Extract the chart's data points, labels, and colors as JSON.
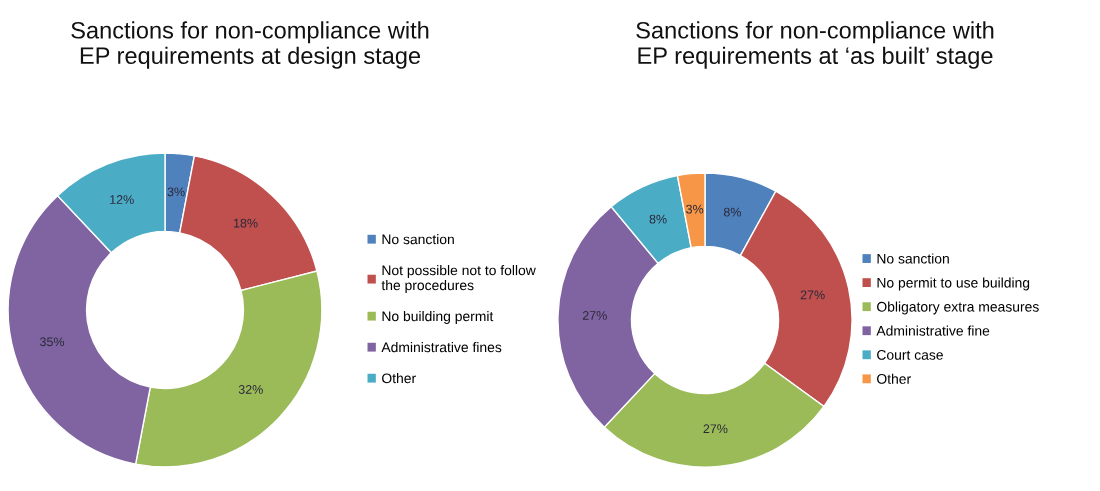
{
  "chart_data": [
    {
      "type": "donut",
      "title": "Sanctions for non-compliance with\nEP requirements at design stage",
      "categories": [
        "No sanction",
        "Not possible not to follow\nthe procedures",
        "No building permit",
        "Administrative fines",
        "Other"
      ],
      "values": [
        3,
        18,
        32,
        35,
        12
      ],
      "value_labels": [
        "3%",
        "18%",
        "32%",
        "35%",
        "12%"
      ],
      "colors": [
        "#4f81bd",
        "#c0504d",
        "#9bbb59",
        "#8064a2",
        "#4bacc6"
      ],
      "legend": "right"
    },
    {
      "type": "donut",
      "title": "Sanctions for non-compliance with\nEP requirements at ‘as built’ stage",
      "categories": [
        "No sanction",
        "No permit to use building",
        "Obligatory extra measures",
        "Administrative fine",
        "Court case",
        "Other"
      ],
      "values": [
        8,
        27,
        27,
        27,
        8,
        3
      ],
      "value_labels": [
        "8%",
        "27%",
        "27%",
        "27%",
        "8%",
        "3%"
      ],
      "colors": [
        "#4f81bd",
        "#c0504d",
        "#9bbb59",
        "#8064a2",
        "#4bacc6",
        "#f79646"
      ],
      "legend": "right"
    }
  ]
}
